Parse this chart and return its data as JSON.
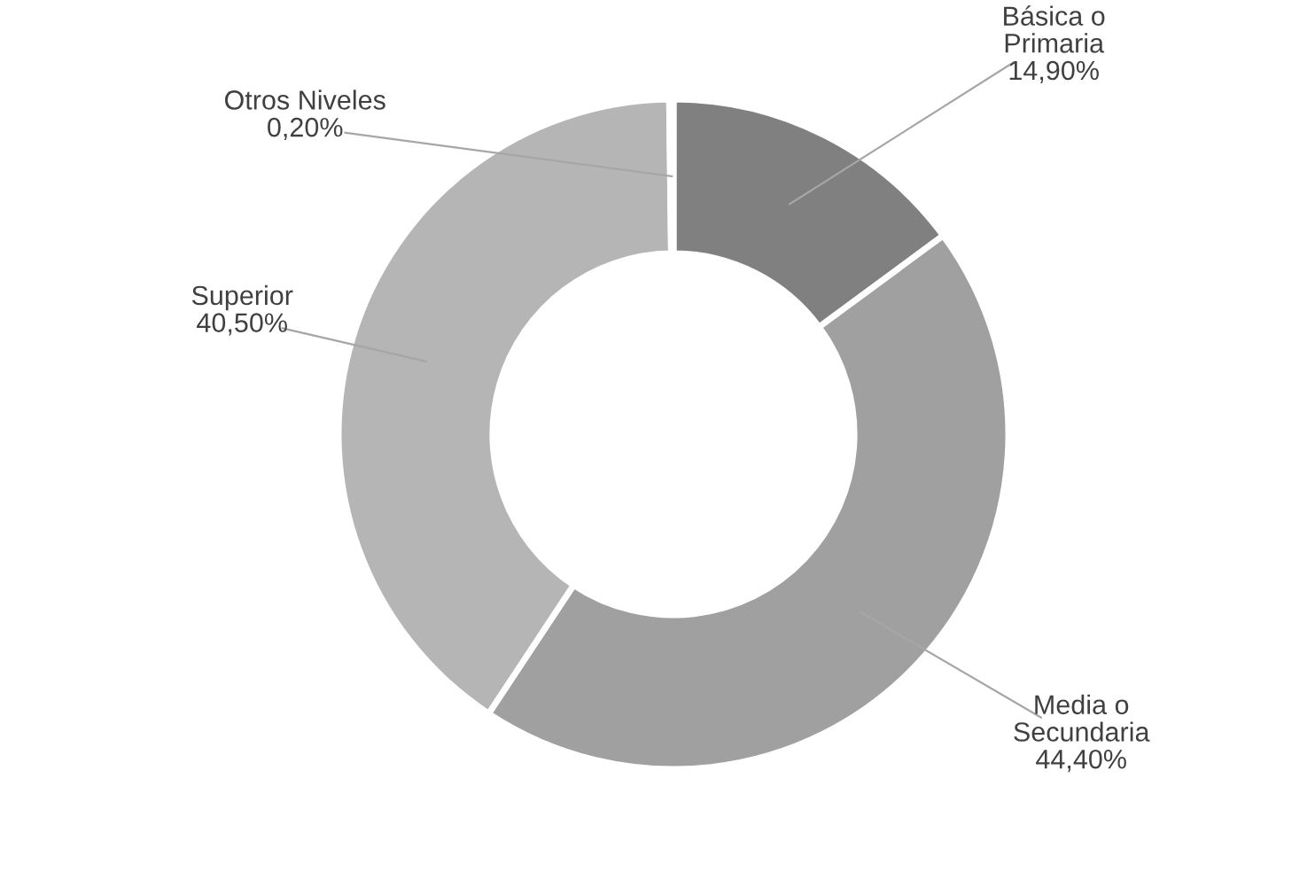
{
  "chart_data": {
    "type": "donut",
    "categories": [
      "Básica o\nPrimaria",
      "Media o\nSecundaria",
      "Superior",
      "Otros Niveles"
    ],
    "values": [
      14.9,
      44.4,
      40.5,
      0.2
    ],
    "value_labels": [
      "14,90%",
      "44,40%",
      "40,50%",
      "0,20%"
    ],
    "colors": [
      "#808080",
      "#a0a0a0",
      "#b5b5b5",
      "#c8c8c8"
    ],
    "legend": false
  }
}
